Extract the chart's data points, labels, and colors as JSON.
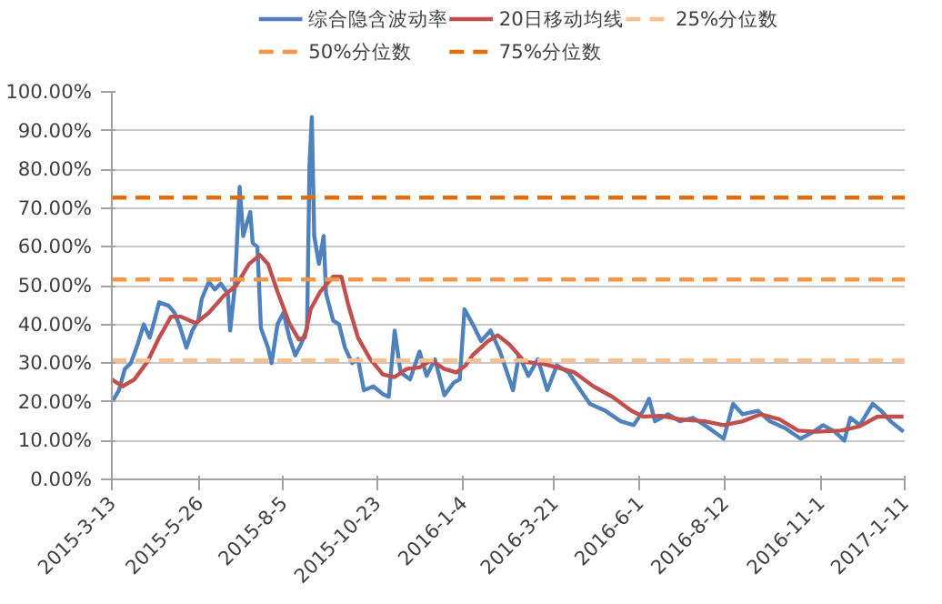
{
  "chart_data": {
    "type": "line",
    "xlim": [
      "2015-03-13",
      "2017-01-11"
    ],
    "xticks": [
      {
        "value": "2015-03-13",
        "label": "2015-3-13"
      },
      {
        "value": "2015-05-26",
        "label": "2015-5-26"
      },
      {
        "value": "2015-08-05",
        "label": "2015-8-5"
      },
      {
        "value": "2015-10-23",
        "label": "2015-10-23"
      },
      {
        "value": "2016-01-04",
        "label": "2016-1-4"
      },
      {
        "value": "2016-03-21",
        "label": "2016-3-21"
      },
      {
        "value": "2016-06-01",
        "label": "2016-6-1"
      },
      {
        "value": "2016-08-12",
        "label": "2016-8-12"
      },
      {
        "value": "2016-11-01",
        "label": "2016-11-1"
      },
      {
        "value": "2017-01-11",
        "label": "2017-1-11"
      }
    ],
    "ylim": [
      0,
      100
    ],
    "yticks": [
      {
        "value": 0,
        "label": "0.00%"
      },
      {
        "value": 10,
        "label": "10.00%"
      },
      {
        "value": 20,
        "label": "20.00%"
      },
      {
        "value": 30,
        "label": "30.00%"
      },
      {
        "value": 40,
        "label": "40.00%"
      },
      {
        "value": 50,
        "label": "50.00%"
      },
      {
        "value": 60,
        "label": "60.00%"
      },
      {
        "value": 70,
        "label": "70.00%"
      },
      {
        "value": 80,
        "label": "80.00%"
      },
      {
        "value": 90,
        "label": "90.00%"
      },
      {
        "value": 100,
        "label": "100.00%"
      }
    ],
    "grid": "y",
    "legend": "top",
    "marker": "none",
    "line_style": "solid",
    "series": [
      {
        "name": "综合隐含波动率",
        "color": "#4f81bd",
        "x": [
          "2015-03-14",
          "2015-03-19",
          "2015-03-24",
          "2015-03-29",
          "2015-04-04",
          "2015-04-09",
          "2015-04-14",
          "2015-04-18",
          "2015-04-22",
          "2015-04-30",
          "2015-05-05",
          "2015-05-10",
          "2015-05-15",
          "2015-05-20",
          "2015-05-25",
          "2015-05-28",
          "2015-06-03",
          "2015-06-08",
          "2015-06-13",
          "2015-06-19",
          "2015-06-21",
          "2015-06-25",
          "2015-06-29",
          "2015-07-02",
          "2015-07-05",
          "2015-07-08",
          "2015-07-10",
          "2015-07-14",
          "2015-07-17",
          "2015-07-23",
          "2015-07-26",
          "2015-07-31",
          "2015-08-05",
          "2015-08-10",
          "2015-08-15",
          "2015-08-20",
          "2015-08-25",
          "2015-08-27",
          "2015-08-29",
          "2015-08-31",
          "2015-09-04",
          "2015-09-08",
          "2015-09-10",
          "2015-09-16",
          "2015-09-21",
          "2015-09-26",
          "2015-10-02",
          "2015-10-07",
          "2015-10-12",
          "2015-10-20",
          "2015-10-28",
          "2015-11-02",
          "2015-11-07",
          "2015-11-12",
          "2015-11-20",
          "2015-11-28",
          "2015-12-04",
          "2015-12-11",
          "2015-12-19",
          "2015-12-27",
          "2016-01-01",
          "2016-01-05",
          "2016-01-12",
          "2016-01-19",
          "2016-01-27",
          "2016-02-04",
          "2016-02-15",
          "2016-02-20",
          "2016-02-28",
          "2016-03-07",
          "2016-03-15",
          "2016-03-23",
          "2016-04-02",
          "2016-04-12",
          "2016-04-20",
          "2016-05-03",
          "2016-05-16",
          "2016-05-27",
          "2016-06-04",
          "2016-06-09",
          "2016-06-14",
          "2016-06-25",
          "2016-07-05",
          "2016-07-16",
          "2016-07-26",
          "2016-08-11",
          "2016-08-19",
          "2016-08-27",
          "2016-09-09",
          "2016-09-19",
          "2016-10-02",
          "2016-10-15",
          "2016-10-26",
          "2016-11-03",
          "2016-11-13",
          "2016-11-21",
          "2016-11-26",
          "2016-12-04",
          "2016-12-15",
          "2016-12-22",
          "2016-12-30",
          "2017-01-10"
        ],
        "values": [
          20.4,
          23,
          28.5,
          30,
          35,
          40,
          36.6,
          41,
          45.7,
          44.8,
          43,
          39,
          34,
          38.4,
          41,
          46.6,
          51,
          49,
          50.5,
          48,
          38.4,
          50,
          75.5,
          62.8,
          66,
          69,
          61,
          60,
          39,
          34,
          30,
          40,
          43,
          36.6,
          32,
          35,
          39,
          81,
          93.5,
          62.8,
          55.6,
          62.8,
          48,
          41,
          40,
          34,
          30,
          31,
          23,
          24,
          22,
          21.3,
          38.4,
          27.6,
          25.8,
          33,
          26.7,
          31,
          21.7,
          25,
          25.8,
          43.9,
          40,
          35.7,
          38.4,
          33,
          23,
          32,
          26.7,
          31,
          23,
          29.4,
          27.6,
          23,
          19.5,
          17.7,
          15,
          14,
          17.7,
          20.8,
          15,
          16.8,
          15,
          15.9,
          14,
          10.5,
          19.5,
          16.8,
          17.7,
          15,
          13.2,
          10.5,
          12.3,
          14,
          12.3,
          10,
          15.9,
          14,
          19.5,
          17.7,
          15,
          12.3
        ]
      },
      {
        "name": "20日移动均线",
        "color": "#c0504d",
        "x": [
          "2015-03-13",
          "2015-03-22",
          "2015-04-01",
          "2015-04-12",
          "2015-04-22",
          "2015-05-02",
          "2015-05-10",
          "2015-05-23",
          "2015-06-03",
          "2015-06-16",
          "2015-06-26",
          "2015-07-07",
          "2015-07-16",
          "2015-07-23",
          "2015-07-31",
          "2015-08-10",
          "2015-08-18",
          "2015-08-23",
          "2015-08-28",
          "2015-09-05",
          "2015-09-16",
          "2015-09-23",
          "2015-09-29",
          "2015-10-07",
          "2015-10-17",
          "2015-10-28",
          "2015-11-07",
          "2015-11-17",
          "2015-11-28",
          "2015-12-08",
          "2015-12-19",
          "2015-12-29",
          "2016-01-06",
          "2016-01-12",
          "2016-01-25",
          "2016-02-02",
          "2016-02-12",
          "2016-02-25",
          "2016-03-12",
          "2016-03-28",
          "2016-04-07",
          "2016-04-23",
          "2016-05-09",
          "2016-05-25",
          "2016-06-04",
          "2016-06-19",
          "2016-07-05",
          "2016-07-26",
          "2016-08-11",
          "2016-08-27",
          "2016-09-11",
          "2016-09-27",
          "2016-10-13",
          "2016-10-28",
          "2016-11-18",
          "2016-12-04",
          "2016-12-19",
          "2017-01-10"
        ],
        "values": [
          25.8,
          24,
          25.8,
          30.3,
          36.6,
          42,
          42,
          40.3,
          43,
          47.5,
          50,
          55.6,
          57.9,
          55.6,
          48.4,
          40.3,
          36.1,
          36.6,
          43.9,
          48.4,
          52.3,
          52.3,
          44.8,
          36.6,
          31.2,
          27.1,
          26.4,
          28.5,
          28.9,
          30.7,
          28.5,
          27.6,
          29.4,
          32.1,
          35.7,
          37.2,
          34.8,
          30.3,
          29.8,
          28.5,
          27.6,
          24,
          21.3,
          17.7,
          16.2,
          16.4,
          15.5,
          15,
          14,
          15,
          16.8,
          15.5,
          12.6,
          12.3,
          12.6,
          13.7,
          16.2,
          16.2
        ]
      }
    ],
    "ref_lines": [
      {
        "axis": "y",
        "value": 30.7,
        "label": "25%分位数",
        "color": "#fac090",
        "line_style": "dashed"
      },
      {
        "axis": "y",
        "value": 51.6,
        "label": "50%分位数",
        "color": "#f79646",
        "line_style": "dashed"
      },
      {
        "axis": "y",
        "value": 72.7,
        "label": "75%分位数",
        "color": "#e46c0a",
        "line_style": "dashed"
      }
    ]
  }
}
